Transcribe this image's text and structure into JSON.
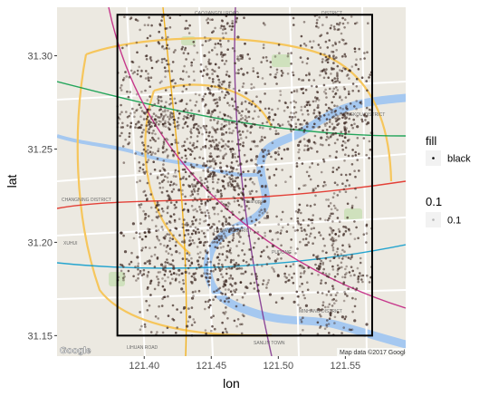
{
  "chart_data": {
    "type": "scatter",
    "title": "",
    "xlabel": "lon",
    "ylabel": "lat",
    "xlim": [
      121.335,
      121.595
    ],
    "ylim": [
      31.139,
      31.326
    ],
    "x_ticks": [
      121.4,
      121.45,
      121.5,
      121.55
    ],
    "x_tick_labels": [
      "121.40",
      "121.45",
      "121.50",
      "121.55"
    ],
    "y_ticks": [
      31.15,
      31.2,
      31.25,
      31.3
    ],
    "y_tick_labels": [
      "31.15",
      "31.20",
      "31.25",
      "31.30"
    ],
    "bounding_box": {
      "lon_min": 121.38,
      "lon_max": 121.57,
      "lat_min": 31.15,
      "lat_max": 31.322
    },
    "point_color": "#3b2620",
    "point_alpha": 0.1,
    "background": "map",
    "grid": false,
    "legend_position": "right",
    "legends": [
      {
        "title": "fill",
        "entries": [
          {
            "label": "black",
            "color": "#000000"
          }
        ]
      },
      {
        "title": "0.1",
        "entries": [
          {
            "label": "0.1",
            "color": "#000000",
            "alpha": 0.1
          }
        ]
      }
    ],
    "series": [
      {
        "points_description": "dense GPS point cloud over Shanghai road network; sampled trace points",
        "x": [
          121.383,
          121.392,
          121.401,
          121.41,
          121.418,
          121.426,
          121.434,
          121.44,
          121.446,
          121.452,
          121.458,
          121.465,
          121.472,
          121.48,
          121.489,
          121.498,
          121.507,
          121.515,
          121.523,
          121.532,
          121.541,
          121.55,
          121.559,
          121.567,
          121.386,
          121.395,
          121.404,
          121.413,
          121.422,
          121.431,
          121.437,
          121.443,
          121.449,
          121.455,
          121.461,
          121.468,
          121.476,
          121.485,
          121.494,
          121.503,
          121.512,
          121.521,
          121.53,
          121.539,
          121.548,
          121.557,
          121.566,
          121.445,
          121.447,
          121.449,
          121.451,
          121.453,
          121.455,
          121.457,
          121.459,
          121.461,
          121.463,
          121.442,
          121.44,
          121.438,
          121.436,
          121.434,
          121.432,
          121.43,
          121.428,
          121.426,
          121.424,
          121.47,
          121.472,
          121.474,
          121.476,
          121.478,
          121.48,
          121.482,
          121.484,
          121.486,
          121.488,
          121.49,
          121.492,
          121.494,
          121.496,
          121.498,
          121.5
        ],
        "y": [
          31.205,
          31.21,
          31.215,
          31.22,
          31.225,
          31.228,
          31.23,
          31.232,
          31.234,
          31.236,
          31.238,
          31.24,
          31.242,
          31.244,
          31.246,
          31.248,
          31.25,
          31.252,
          31.254,
          31.256,
          31.258,
          31.26,
          31.262,
          31.264,
          31.195,
          31.192,
          31.19,
          31.188,
          31.186,
          31.184,
          31.183,
          31.182,
          31.181,
          31.18,
          31.179,
          31.178,
          31.176,
          31.174,
          31.172,
          31.17,
          31.168,
          31.166,
          31.164,
          31.162,
          31.16,
          31.158,
          31.156,
          31.3,
          31.29,
          31.28,
          31.27,
          31.26,
          31.25,
          31.24,
          31.23,
          31.22,
          31.21,
          31.2,
          31.19,
          31.18,
          31.17,
          31.16,
          31.155,
          31.165,
          31.175,
          31.185,
          31.195,
          31.31,
          31.3,
          31.29,
          31.28,
          31.27,
          31.262,
          31.254,
          31.246,
          31.238,
          31.23,
          31.222,
          31.214,
          31.206,
          31.198,
          31.19,
          31.182
        ]
      }
    ]
  },
  "map": {
    "attribution": "Map data ©2017 Google",
    "logo": "Google",
    "water_color": "#a5c8f0",
    "land_color": "#ece9e1",
    "road_color": "#ffffff",
    "park_color": "#c8dfb4"
  }
}
